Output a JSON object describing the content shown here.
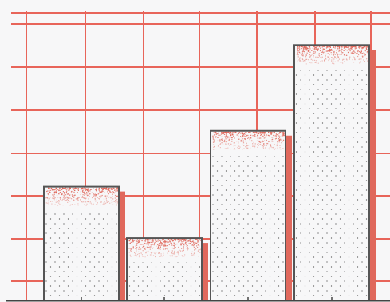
{
  "colors": {
    "background": "#f7f7f8",
    "grid": "#e8655a",
    "bar_fill": "#f7f7f8",
    "bar_outline": "#555555",
    "bar_shadow": "#e0685c",
    "stipple_red": "#e0685c",
    "dots": "#555555",
    "baseline": "#444444"
  },
  "chart_data": {
    "type": "bar",
    "categories": [
      "",
      "",
      "",
      ""
    ],
    "values": [
      2.65,
      1.45,
      3.95,
      5.95
    ],
    "title": "",
    "xlabel": "",
    "ylabel": "",
    "ylim": [
      0,
      6.7
    ],
    "grid": true,
    "legend": "none"
  }
}
